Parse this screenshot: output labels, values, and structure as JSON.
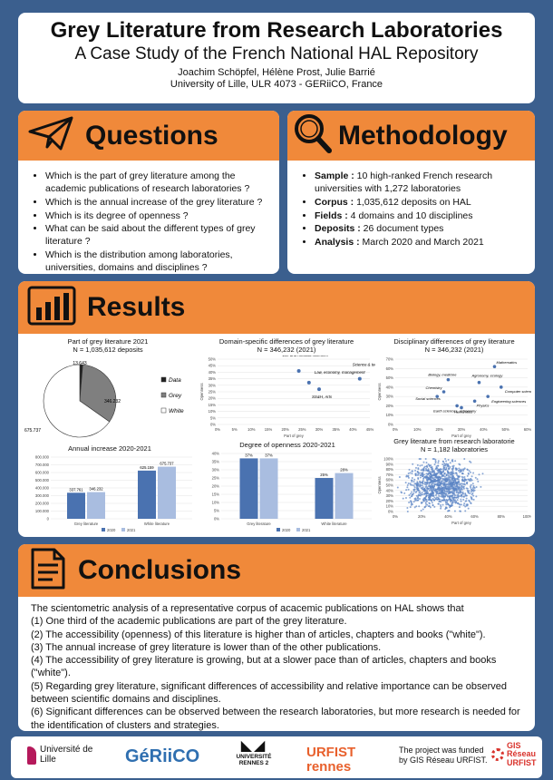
{
  "header": {
    "title": "Grey Literature from Research Laboratories",
    "subtitle": "A Case Study of the French National HAL Repository",
    "authors": "Joachim Schöpfel, Hélène Prost, Julie Barrié",
    "affiliation": "University of Lille, ULR 4073 - GERiiCO, France"
  },
  "questions": {
    "title": "Questions",
    "items": [
      "Which is the part of grey literature among the academic publications of research laboratories ?",
      "Which is the annual increase of the grey literature ?",
      "Which is its degree of openness ?",
      "What can be said about the different types of grey literature ?",
      "Which is the distribution among laboratories, universities, domains and disciplines ?"
    ]
  },
  "methodology": {
    "title": "Methodology",
    "items": [
      {
        "label": "Sample :",
        "text": " 10 high-ranked French research universities with 1,272 laboratories"
      },
      {
        "label": "Corpus :",
        "text": " 1,035,612 deposits on HAL"
      },
      {
        "label": "Fields :",
        "text": " 4 domains and 10 disciplines"
      },
      {
        "label": "Deposits :",
        "text": " 26 document types"
      },
      {
        "label": "Analysis :",
        "text": " March 2020 and March 2021"
      }
    ]
  },
  "results": {
    "title": "Results"
  },
  "chart_data": [
    {
      "type": "pie",
      "title": "Part of grey literature 2021",
      "subtitle": "N = 1,035,612 deposits",
      "labels": [
        "Data",
        "Grey",
        "White"
      ],
      "values": [
        13643,
        346232,
        675737
      ],
      "value_labels": [
        "13.643",
        "346.232",
        "675.737"
      ],
      "colors": [
        "#222222",
        "#7f7f7f",
        "#ffffff"
      ]
    },
    {
      "type": "scatter",
      "title": "Domain-specific differences of grey literature",
      "subtitle": "N = 346,232 (2021)",
      "xlabel": "Part of grey",
      "ylabel": "Openness",
      "xlim": [
        0,
        45
      ],
      "ylim": [
        0,
        50
      ],
      "xticks": [
        "0%",
        "5%",
        "10%",
        "15%",
        "20%",
        "25%",
        "30%",
        "35%",
        "40%",
        "45%"
      ],
      "yticks": [
        "0%",
        "5%",
        "10%",
        "15%",
        "20%",
        "25%",
        "30%",
        "35%",
        "40%",
        "45%",
        "50%"
      ],
      "points": [
        {
          "x": 24,
          "y": 41,
          "label": "Life and medical sciences"
        },
        {
          "x": 27,
          "y": 32,
          "label": "Law, economy, management"
        },
        {
          "x": 30,
          "y": 27,
          "label": "SS&H, Arts"
        },
        {
          "x": 42,
          "y": 35,
          "label": "Science & technology"
        }
      ]
    },
    {
      "type": "scatter",
      "title": "Disciplinary differences of grey literature",
      "subtitle": "N = 346,232 (2021)",
      "xlabel": "Part of grey",
      "ylabel": "Openness",
      "xlim": [
        0,
        60
      ],
      "ylim": [
        0,
        70
      ],
      "xticks": [
        "0%",
        "10%",
        "20%",
        "30%",
        "40%",
        "50%",
        "60%"
      ],
      "yticks": [
        "0%",
        "10%",
        "20%",
        "30%",
        "40%",
        "50%",
        "60%",
        "70%"
      ],
      "points": [
        {
          "x": 45,
          "y": 62,
          "label": "Mathematics"
        },
        {
          "x": 24,
          "y": 48,
          "label": "Biology, medicine"
        },
        {
          "x": 38,
          "y": 45,
          "label": "Agronomy, ecology"
        },
        {
          "x": 48,
          "y": 40,
          "label": "Computer sciences"
        },
        {
          "x": 22,
          "y": 35,
          "label": "Chemistry"
        },
        {
          "x": 42,
          "y": 30,
          "label": "Engineering sciences"
        },
        {
          "x": 19,
          "y": 30,
          "label": "Social sciences"
        },
        {
          "x": 36,
          "y": 25,
          "label": "Physics"
        },
        {
          "x": 28,
          "y": 20,
          "label": "Earth sciences, astronomy"
        },
        {
          "x": 30,
          "y": 18,
          "label": "Humanities"
        }
      ]
    },
    {
      "type": "bar",
      "title": "Annual increase 2020-2021",
      "categories": [
        "Grey literature",
        "White literature"
      ],
      "series": [
        {
          "name": "2020",
          "values": [
            337761,
            625159
          ],
          "value_labels": [
            "337.761",
            "625.159"
          ],
          "color": "#4a72b0"
        },
        {
          "name": "2021",
          "values": [
            346232,
            675737
          ],
          "value_labels": [
            "346.232",
            "675.737"
          ],
          "color": "#a9bde0"
        }
      ],
      "ylim": [
        0,
        800000
      ],
      "yticks": [
        "0",
        "100.000",
        "200.000",
        "300.000",
        "400.000",
        "500.000",
        "600.000",
        "700.000",
        "800.000"
      ]
    },
    {
      "type": "bar",
      "title": "Degree of openness 2020-2021",
      "categories": [
        "Grey literature",
        "White literature"
      ],
      "series": [
        {
          "name": "2020",
          "values": [
            37,
            25
          ],
          "value_labels": [
            "37%",
            "25%"
          ],
          "color": "#4a72b0"
        },
        {
          "name": "2021",
          "values": [
            37,
            28
          ],
          "value_labels": [
            "37%",
            "28%"
          ],
          "color": "#a9bde0"
        }
      ],
      "ylim": [
        0,
        40
      ],
      "yticks": [
        "0%",
        "5%",
        "10%",
        "15%",
        "20%",
        "25%",
        "30%",
        "35%",
        "40%"
      ]
    },
    {
      "type": "scatter",
      "title": "Grey literature from research laboratorie",
      "subtitle": "N = 1,182 laboratories",
      "xlabel": "Part of grey",
      "ylabel": "Openness",
      "xlim": [
        0,
        100
      ],
      "ylim": [
        0,
        100
      ],
      "xticks": [
        "0%",
        "20%",
        "40%",
        "60%",
        "80%",
        "100%"
      ],
      "yticks": [
        "0%",
        "10%",
        "20%",
        "30%",
        "40%",
        "50%",
        "60%",
        "70%",
        "80%",
        "90%",
        "100%"
      ],
      "n_points": 1182
    }
  ],
  "conclusions": {
    "title": "Conclusions",
    "paragraphs": [
      "The scientometric analysis of a representative corpus of acacemic publications on HAL shows that",
      "(1) One third of the academic publications are part of the grey literature.",
      "(2) The accessibility (openness) of this literature is higher than of articles, chapters and books (\"white\").",
      "(3) The annual increase of grey literature is lower than of the other publications.",
      "(4) The accessibility of grey literature is growing, but at a slower pace than of articles, chapters and books (\"white\").",
      "(5) Regarding grey literature, significant differences of accessibility and relative importance can be observed between scientific domains and disciplines.",
      "(6) Significant differences can be observed between the research laboratories, but more research is needed for the identification of clusters and strategies."
    ]
  },
  "footer": {
    "logo1": "Université de Lille",
    "logo2": "GéRiiCO",
    "logo3": "UNIVERSITÉ RENNES 2",
    "logo4": "URFIST rennes",
    "funding": "The project was funded by GIS Réseau URFIST.",
    "logo5": "GIS Réseau URFIST"
  },
  "colors": {
    "accent": "#f0893a",
    "background": "#3b5f8e",
    "bar2020": "#4a72b0",
    "bar2021": "#a9bde0"
  }
}
